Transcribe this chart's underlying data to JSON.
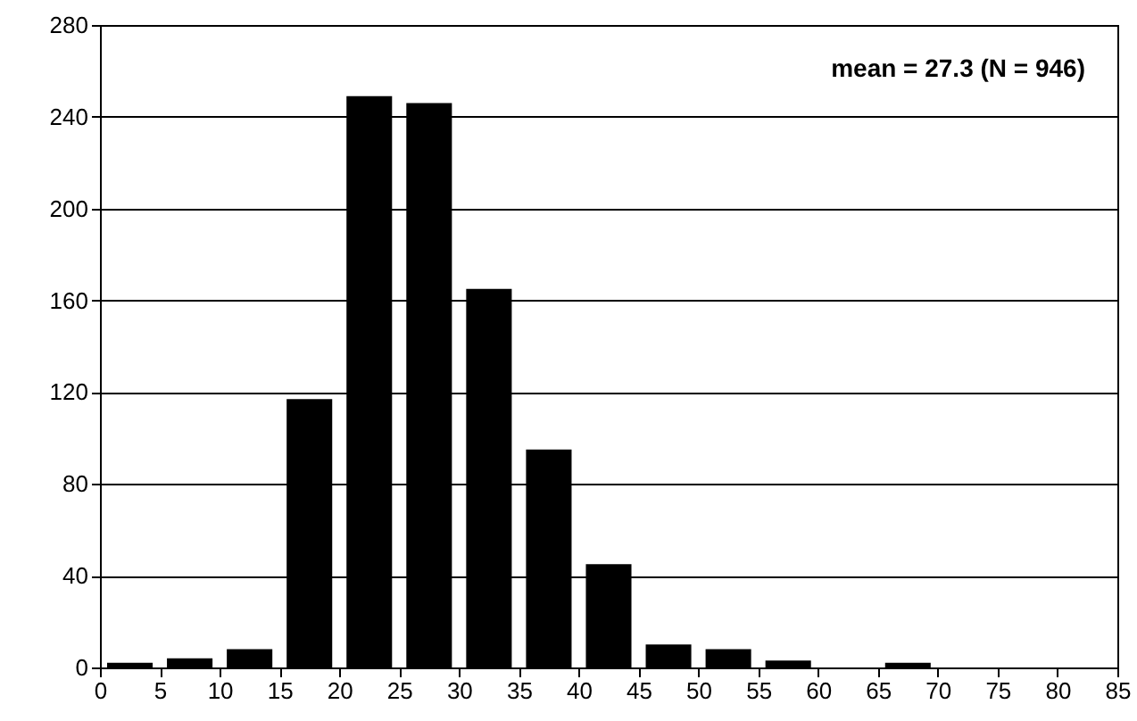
{
  "chart_data": {
    "type": "histogram",
    "bins": [
      0,
      5,
      10,
      15,
      20,
      25,
      30,
      35,
      40,
      45,
      50,
      55,
      60,
      65,
      70,
      75,
      80,
      85
    ],
    "values": [
      2,
      4,
      8,
      117,
      249,
      246,
      165,
      95,
      45,
      10,
      8,
      3,
      0,
      2,
      0,
      0,
      0
    ],
    "color": "#000000",
    "xlim": [
      0,
      85
    ],
    "xticks": [
      0,
      5,
      10,
      15,
      20,
      25,
      30,
      35,
      40,
      45,
      50,
      55,
      60,
      65,
      70,
      75,
      80,
      85
    ],
    "ylim": [
      0,
      280
    ],
    "yticks": [
      0,
      40,
      80,
      120,
      160,
      200,
      240,
      280
    ],
    "grid": "y",
    "annotations": [
      "mean = 27.3  (N = 946)"
    ]
  }
}
